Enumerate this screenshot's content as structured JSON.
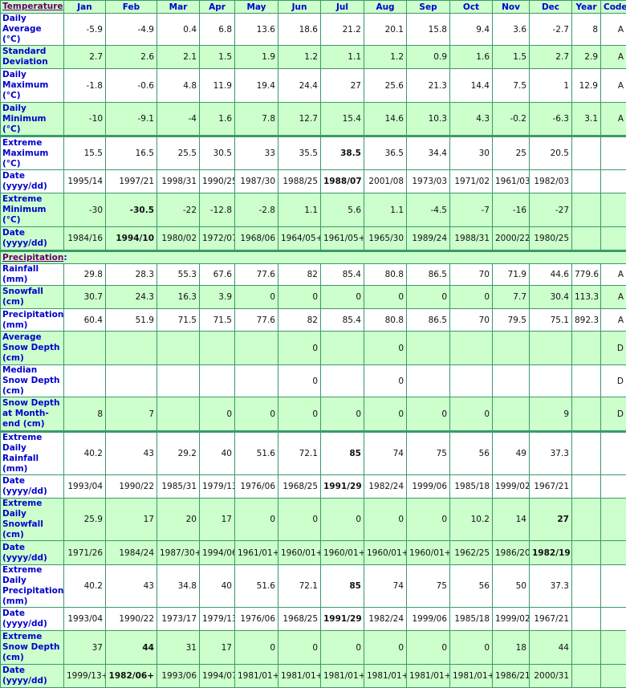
{
  "header": {
    "temperature_label": "Temperature",
    "months": [
      "Jan",
      "Feb",
      "Mar",
      "Apr",
      "May",
      "Jun",
      "Jul",
      "Aug",
      "Sep",
      "Oct",
      "Nov",
      "Dec"
    ],
    "year": "Year",
    "code": "Code"
  },
  "precipitation_label": "Precipitation",
  "colors": {
    "green_row": "#ccffcc",
    "border": "#3a9a6a",
    "label": "#0000cc",
    "section": "#660066"
  },
  "temperature_rows": [
    {
      "label": "Daily Average (°C)",
      "values": [
        "-5.9",
        "-4.9",
        "0.4",
        "6.8",
        "13.6",
        "18.6",
        "21.2",
        "20.1",
        "15.8",
        "9.4",
        "3.6",
        "-2.7",
        "8",
        "A"
      ],
      "bold": []
    },
    {
      "label": "Standard Deviation",
      "values": [
        "2.7",
        "2.6",
        "2.1",
        "1.5",
        "1.9",
        "1.2",
        "1.1",
        "1.2",
        "0.9",
        "1.6",
        "1.5",
        "2.7",
        "2.9",
        "A"
      ],
      "bold": []
    },
    {
      "label": "Daily Maximum (°C)",
      "values": [
        "-1.8",
        "-0.6",
        "4.8",
        "11.9",
        "19.4",
        "24.4",
        "27",
        "25.6",
        "21.3",
        "14.4",
        "7.5",
        "1",
        "12.9",
        "A"
      ],
      "bold": []
    },
    {
      "label": "Daily Minimum (°C)",
      "values": [
        "-10",
        "-9.1",
        "-4",
        "1.6",
        "7.8",
        "12.7",
        "15.4",
        "14.6",
        "10.3",
        "4.3",
        "-0.2",
        "-6.3",
        "3.1",
        "A"
      ],
      "bold": []
    },
    {
      "label": "Extreme Maximum (°C)",
      "values": [
        "15.5",
        "16.5",
        "25.5",
        "30.5",
        "33",
        "35.5",
        "38.5",
        "36.5",
        "34.4",
        "30",
        "25",
        "20.5",
        "",
        ""
      ],
      "bold": [
        6
      ]
    },
    {
      "label": "Date (yyyy/dd)",
      "values": [
        "1995/14",
        "1997/21",
        "1998/31",
        "1990/25",
        "1987/30",
        "1988/25",
        "1988/07",
        "2001/08",
        "1973/03",
        "1971/02",
        "1961/03",
        "1982/03",
        "",
        ""
      ],
      "bold": [
        6
      ]
    },
    {
      "label": "Extreme Minimum (°C)",
      "values": [
        "-30",
        "-30.5",
        "-22",
        "-12.8",
        "-2.8",
        "1.1",
        "5.6",
        "1.1",
        "-4.5",
        "-7",
        "-16",
        "-27",
        "",
        ""
      ],
      "bold": [
        1
      ]
    },
    {
      "label": "Date (yyyy/dd)",
      "values": [
        "1984/16",
        "1994/10",
        "1980/02",
        "1972/07",
        "1968/06",
        "1964/05+",
        "1961/05+",
        "1965/30",
        "1989/24",
        "1988/31",
        "2000/22",
        "1980/25",
        "",
        ""
      ],
      "bold": [
        1
      ]
    }
  ],
  "precipitation_rows": [
    {
      "label": "Rainfall (mm)",
      "values": [
        "29.8",
        "28.3",
        "55.3",
        "67.6",
        "77.6",
        "82",
        "85.4",
        "80.8",
        "86.5",
        "70",
        "71.9",
        "44.6",
        "779.6",
        "A"
      ],
      "bold": []
    },
    {
      "label": "Snowfall (cm)",
      "values": [
        "30.7",
        "24.3",
        "16.3",
        "3.9",
        "0",
        "0",
        "0",
        "0",
        "0",
        "0",
        "7.7",
        "30.4",
        "113.3",
        "A"
      ],
      "bold": []
    },
    {
      "label": "Precipitation (mm)",
      "values": [
        "60.4",
        "51.9",
        "71.5",
        "71.5",
        "77.6",
        "82",
        "85.4",
        "80.8",
        "86.5",
        "70",
        "79.5",
        "75.1",
        "892.3",
        "A"
      ],
      "bold": []
    },
    {
      "label": "Average Snow Depth (cm)",
      "values": [
        "",
        "",
        "",
        "",
        "",
        "0",
        "",
        "0",
        "",
        "",
        "",
        "",
        "",
        "D"
      ],
      "bold": []
    },
    {
      "label": "Median Snow Depth (cm)",
      "values": [
        "",
        "",
        "",
        "",
        "",
        "0",
        "",
        "0",
        "",
        "",
        "",
        "",
        "",
        "D"
      ],
      "bold": []
    },
    {
      "label": "Snow Depth at Month-end (cm)",
      "values": [
        "8",
        "7",
        "",
        "0",
        "0",
        "0",
        "0",
        "0",
        "0",
        "0",
        "",
        "9",
        "",
        "D"
      ],
      "bold": []
    },
    {
      "label": "Extreme Daily Rainfall (mm)",
      "values": [
        "40.2",
        "43",
        "29.2",
        "40",
        "51.6",
        "72.1",
        "85",
        "74",
        "75",
        "56",
        "49",
        "37.3",
        "",
        ""
      ],
      "bold": [
        6
      ]
    },
    {
      "label": "Date (yyyy/dd)",
      "values": [
        "1993/04",
        "1990/22",
        "1985/31",
        "1979/13",
        "1976/06",
        "1968/25",
        "1991/29",
        "1982/24",
        "1999/06",
        "1985/18",
        "1999/02",
        "1967/21",
        "",
        ""
      ],
      "bold": [
        6
      ]
    },
    {
      "label": "Extreme Daily Snowfall (cm)",
      "values": [
        "25.9",
        "17",
        "20",
        "17",
        "0",
        "0",
        "0",
        "0",
        "0",
        "10.2",
        "14",
        "27",
        "",
        ""
      ],
      "bold": [
        11
      ]
    },
    {
      "label": "Date (yyyy/dd)",
      "values": [
        "1971/26",
        "1984/24",
        "1987/30+",
        "1994/06",
        "1961/01+",
        "1960/01+",
        "1960/01+",
        "1960/01+",
        "1960/01+",
        "1962/25",
        "1986/20",
        "1982/19",
        "",
        ""
      ],
      "bold": [
        11
      ]
    },
    {
      "label": "Extreme Daily Precipitation (mm)",
      "values": [
        "40.2",
        "43",
        "34.8",
        "40",
        "51.6",
        "72.1",
        "85",
        "74",
        "75",
        "56",
        "50",
        "37.3",
        "",
        ""
      ],
      "bold": [
        6
      ]
    },
    {
      "label": "Date (yyyy/dd)",
      "values": [
        "1993/04",
        "1990/22",
        "1973/17",
        "1979/13",
        "1976/06",
        "1968/25",
        "1991/29",
        "1982/24",
        "1999/06",
        "1985/18",
        "1999/02",
        "1967/21",
        "",
        ""
      ],
      "bold": [
        6
      ]
    },
    {
      "label": "Extreme Snow Depth (cm)",
      "values": [
        "37",
        "44",
        "31",
        "17",
        "0",
        "0",
        "0",
        "0",
        "0",
        "0",
        "18",
        "44",
        "",
        ""
      ],
      "bold": [
        1
      ]
    },
    {
      "label": "Date (yyyy/dd)",
      "values": [
        "1999/13+",
        "1982/06+",
        "1993/06",
        "1994/07",
        "1981/01+",
        "1981/01+",
        "1981/01+",
        "1981/01+",
        "1981/01+",
        "1981/01+",
        "1986/21",
        "2000/31",
        "",
        ""
      ],
      "bold": [
        1
      ]
    }
  ]
}
